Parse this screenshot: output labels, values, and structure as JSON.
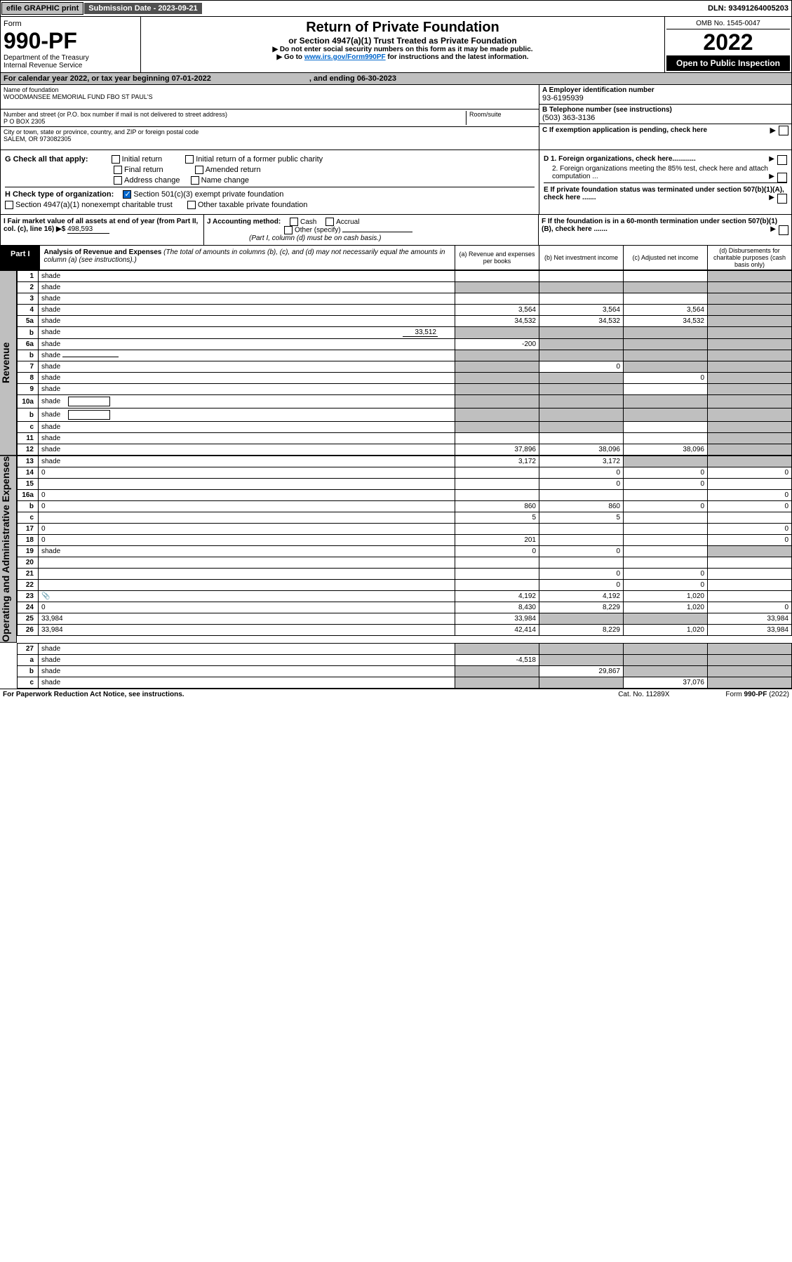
{
  "topbar": {
    "efile": "efile GRAPHIC print",
    "sub_label": "Submission Date - 2023-09-21",
    "dln": "DLN: 93491264005203"
  },
  "header": {
    "form_label": "Form",
    "form_no": "990-PF",
    "dept1": "Department of the Treasury",
    "dept2": "Internal Revenue Service",
    "title": "Return of Private Foundation",
    "subtitle": "or Section 4947(a)(1) Trust Treated as Private Foundation",
    "instr1": "▶ Do not enter social security numbers on this form as it may be made public.",
    "instr2_pre": "▶ Go to ",
    "instr2_link": "www.irs.gov/Form990PF",
    "instr2_post": " for instructions and the latest information.",
    "omb": "OMB No. 1545-0047",
    "year": "2022",
    "open": "Open to Public Inspection"
  },
  "calbar": {
    "text": "For calendar year 2022, or tax year beginning 07-01-2022",
    "mid": ", and ending 06-30-2023"
  },
  "foundation": {
    "name_label": "Name of foundation",
    "name": "WOODMANSEE MEMORIAL FUND FBO ST PAUL'S",
    "addr_label": "Number and street (or P.O. box number if mail is not delivered to street address)",
    "room_label": "Room/suite",
    "addr": "P O BOX 2305",
    "city_label": "City or town, state or province, country, and ZIP or foreign postal code",
    "city": "SALEM, OR  973082305",
    "ein_label": "A Employer identification number",
    "ein": "93-6195939",
    "tel_label": "B Telephone number (see instructions)",
    "tel": "(503) 363-3136",
    "c_label": "C If exemption application is pending, check here"
  },
  "checks": {
    "g_label": "G Check all that apply:",
    "g_items": [
      "Initial return",
      "Initial return of a former public charity",
      "Final return",
      "Amended return",
      "Address change",
      "Name change"
    ],
    "h_label": "H Check type of organization:",
    "h1": "Section 501(c)(3) exempt private foundation",
    "h2": "Section 4947(a)(1) nonexempt charitable trust",
    "h3": "Other taxable private foundation",
    "d1": "D 1. Foreign organizations, check here............",
    "d2": "2. Foreign organizations meeting the 85% test, check here and attach computation ...",
    "e": "E  If private foundation status was terminated under section 507(b)(1)(A), check here .......",
    "f": "F  If the foundation is in a 60-month termination under section 507(b)(1)(B), check here .......",
    "i_label": "I Fair market value of all assets at end of year (from Part II, col. (c), line 16) ▶$",
    "i_val": "498,593",
    "j_label": "J Accounting method:",
    "j_cash": "Cash",
    "j_accr": "Accrual",
    "j_other": "Other (specify)",
    "j_note": "(Part I, column (d) must be on cash basis.)"
  },
  "part1": {
    "tab": "Part I",
    "title": "Analysis of Revenue and Expenses",
    "note": " (The total of amounts in columns (b), (c), and (d) may not necessarily equal the amounts in column (a) (see instructions).)",
    "col_a": "(a)  Revenue and expenses per books",
    "col_b": "(b)  Net investment income",
    "col_c": "(c)  Adjusted net income",
    "col_d": "(d)  Disbursements for charitable purposes (cash basis only)"
  },
  "side_labels": {
    "revenue": "Revenue",
    "expenses": "Operating and Administrative Expenses"
  },
  "rows": [
    {
      "n": "1",
      "d": "shade",
      "a": "",
      "b": "",
      "c": ""
    },
    {
      "n": "2",
      "d": "shade",
      "a": "shade",
      "b": "shade",
      "c": "shade"
    },
    {
      "n": "3",
      "d": "shade",
      "a": "",
      "b": "",
      "c": ""
    },
    {
      "n": "4",
      "d": "shade",
      "a": "3,564",
      "b": "3,564",
      "c": "3,564"
    },
    {
      "n": "5a",
      "d": "shade",
      "a": "34,532",
      "b": "34,532",
      "c": "34,532"
    },
    {
      "n": "b",
      "d": "shade",
      "inset": "33,512",
      "a": "shade",
      "b": "shade",
      "c": "shade"
    },
    {
      "n": "6a",
      "d": "shade",
      "a": "-200",
      "b": "shade",
      "c": "shade"
    },
    {
      "n": "b",
      "d": "shade",
      "a": "shade",
      "b": "shade",
      "c": "shade",
      "underline": true
    },
    {
      "n": "7",
      "d": "shade",
      "a": "shade",
      "b": "0",
      "c": "shade"
    },
    {
      "n": "8",
      "d": "shade",
      "a": "shade",
      "b": "shade",
      "c": "0"
    },
    {
      "n": "9",
      "d": "shade",
      "a": "shade",
      "b": "shade",
      "c": ""
    },
    {
      "n": "10a",
      "d": "shade",
      "a": "shade",
      "b": "shade",
      "c": "shade",
      "box": true
    },
    {
      "n": "b",
      "d": "shade",
      "a": "shade",
      "b": "shade",
      "c": "shade",
      "box": true
    },
    {
      "n": "c",
      "d": "shade",
      "a": "shade",
      "b": "shade",
      "c": ""
    },
    {
      "n": "11",
      "d": "shade",
      "a": "",
      "b": "",
      "c": ""
    },
    {
      "n": "12",
      "d": "shade",
      "a": "37,896",
      "b": "38,096",
      "c": "38,096"
    }
  ],
  "exp_rows": [
    {
      "n": "13",
      "d": "shade",
      "a": "3,172",
      "b": "3,172",
      "c": "shade"
    },
    {
      "n": "14",
      "d": "0",
      "a": "",
      "b": "0",
      "c": "0"
    },
    {
      "n": "15",
      "d": "",
      "a": "",
      "b": "0",
      "c": "0"
    },
    {
      "n": "16a",
      "d": "0",
      "a": "",
      "b": "",
      "c": ""
    },
    {
      "n": "b",
      "d": "0",
      "a": "860",
      "b": "860",
      "c": "0"
    },
    {
      "n": "c",
      "d": "",
      "a": "5",
      "b": "5",
      "c": ""
    },
    {
      "n": "17",
      "d": "0",
      "a": "",
      "b": "",
      "c": ""
    },
    {
      "n": "18",
      "d": "0",
      "a": "201",
      "b": "",
      "c": ""
    },
    {
      "n": "19",
      "d": "shade",
      "a": "0",
      "b": "0",
      "c": ""
    },
    {
      "n": "20",
      "d": "",
      "a": "",
      "b": "",
      "c": ""
    },
    {
      "n": "21",
      "d": "",
      "a": "",
      "b": "0",
      "c": "0"
    },
    {
      "n": "22",
      "d": "",
      "a": "",
      "b": "0",
      "c": "0"
    },
    {
      "n": "23",
      "d": "",
      "icon": true,
      "a": "4,192",
      "b": "4,192",
      "c": "1,020"
    },
    {
      "n": "24",
      "d": "0",
      "a": "8,430",
      "b": "8,229",
      "c": "1,020"
    },
    {
      "n": "25",
      "d": "33,984",
      "a": "33,984",
      "b": "shade",
      "c": "shade"
    },
    {
      "n": "26",
      "d": "33,984",
      "a": "42,414",
      "b": "8,229",
      "c": "1,020"
    }
  ],
  "final_rows": [
    {
      "n": "27",
      "d": "shade",
      "a": "shade",
      "b": "shade",
      "c": "shade"
    },
    {
      "n": "a",
      "d": "shade",
      "a": "-4,518",
      "b": "shade",
      "c": "shade"
    },
    {
      "n": "b",
      "d": "shade",
      "a": "shade",
      "b": "29,867",
      "c": "shade"
    },
    {
      "n": "c",
      "d": "shade",
      "a": "shade",
      "b": "shade",
      "c": "37,076"
    }
  ],
  "footer": {
    "left": "For Paperwork Reduction Act Notice, see instructions.",
    "mid": "Cat. No. 11289X",
    "right": "Form 990-PF (2022)"
  }
}
